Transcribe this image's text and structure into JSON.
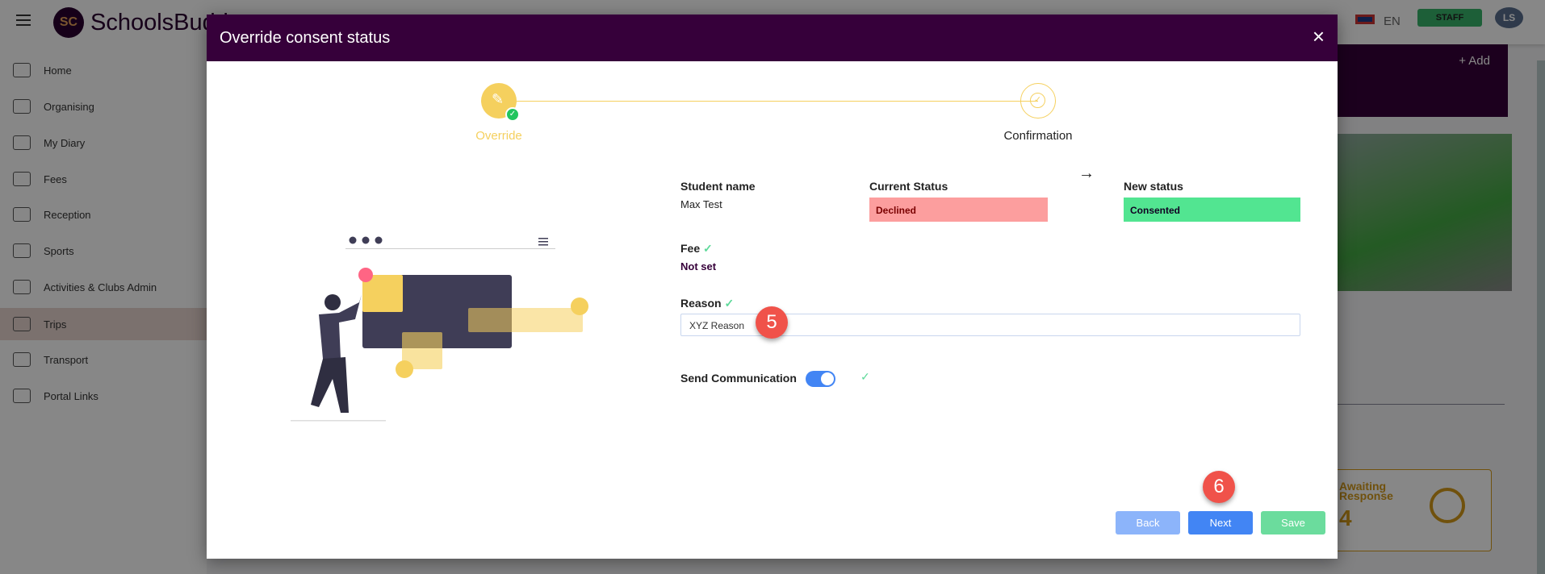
{
  "app": {
    "brand": "SchoolsBuddy",
    "logo_text": "SC",
    "language": "EN",
    "role_button": "STAFF",
    "avatar": "LS"
  },
  "sidebar": {
    "items": [
      {
        "label": "Home"
      },
      {
        "label": "Organising"
      },
      {
        "label": "My Diary"
      },
      {
        "label": "Fees"
      },
      {
        "label": "Reception"
      },
      {
        "label": "Sports"
      },
      {
        "label": "Activities & Clubs Admin"
      },
      {
        "label": "Trips",
        "active": true
      },
      {
        "label": "Transport"
      },
      {
        "label": "Portal Links"
      }
    ]
  },
  "background": {
    "add_label": "+ Add",
    "card": {
      "title": "Awaiting Response",
      "value": "4"
    }
  },
  "modal": {
    "title": "Override consent status",
    "steps": [
      {
        "label": "Override",
        "state": "active"
      },
      {
        "label": "Confirmation",
        "state": "pending"
      }
    ],
    "student_label": "Student name",
    "student_value": "Max Test",
    "current_label": "Current Status",
    "current_value": "Declined",
    "new_label": "New status",
    "new_value": "Consented",
    "fee_label": "Fee",
    "fee_value": "Not set",
    "reason_label": "Reason",
    "reason_value": "XYZ Reason",
    "send_label": "Send Communication",
    "send_enabled": true,
    "buttons": {
      "back": "Back",
      "next": "Next",
      "save": "Save"
    }
  },
  "markers": {
    "m5": "5",
    "m6": "6"
  },
  "colors": {
    "header": "#36003a",
    "accent_yellow": "#f5d05e",
    "declined": "#fc9e9e",
    "consented": "#52e591",
    "primary": "#4285f4"
  }
}
